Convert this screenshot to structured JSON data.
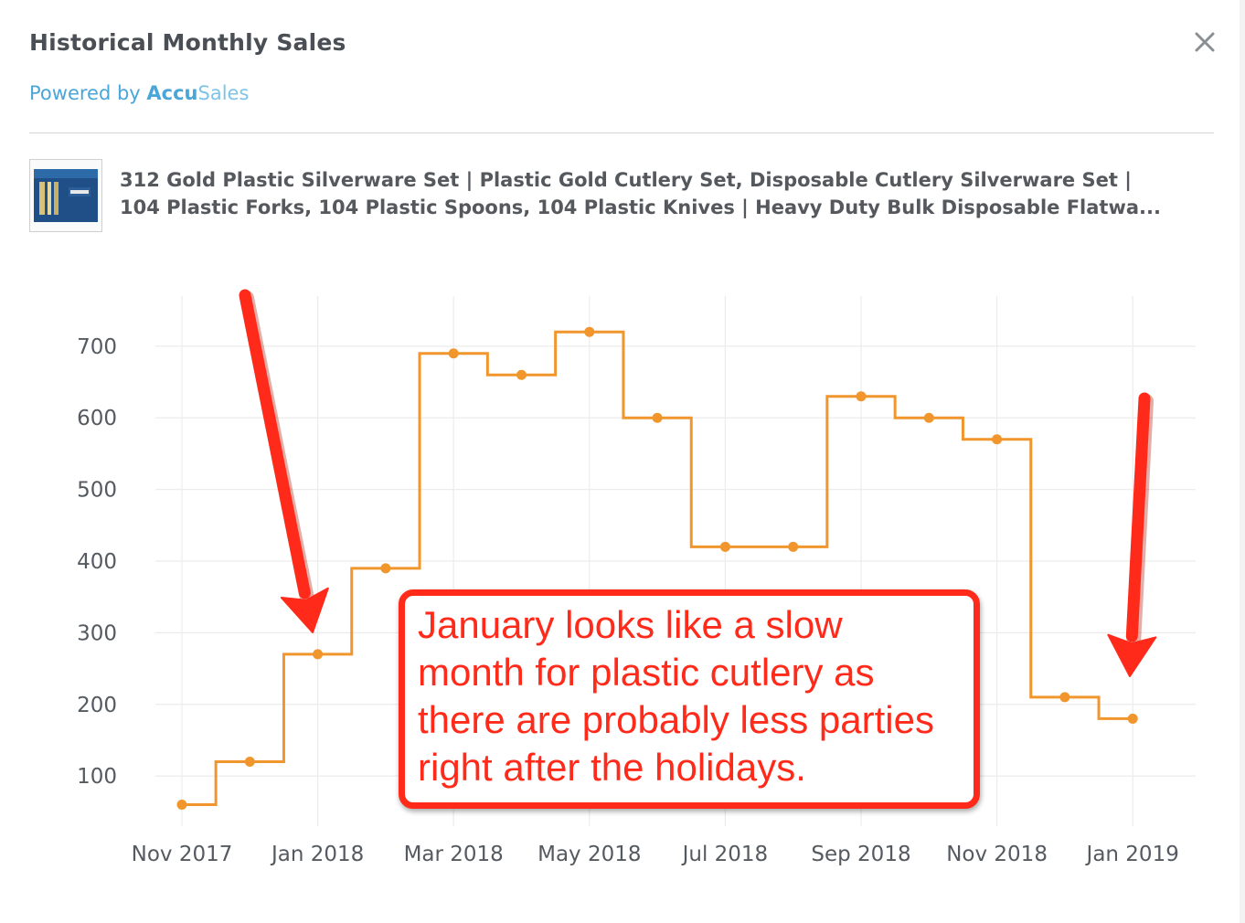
{
  "modal": {
    "title": "Historical Monthly Sales",
    "powered_prefix": "Powered by ",
    "brand_a": "Accu",
    "brand_b": "Sales",
    "close_icon": "close-icon"
  },
  "product": {
    "line1": "312 Gold Plastic Silverware Set | Plastic Gold Cutlery Set, Disposable Cutlery Silverware Set |",
    "line2": "104 Plastic Forks, 104 Plastic Spoons, 104 Plastic Knives | Heavy Duty Bulk Disposable Flatwa...",
    "thumbnail_icon": "product-thumbnail"
  },
  "annotation": {
    "line1": "January looks like a slow",
    "line2": "month for plastic cutlery as",
    "line3": "there are probably less parties",
    "line4": "right after the holidays."
  },
  "colors": {
    "series": "#f0962d",
    "annotation": "#ff2a1a",
    "brand": "#4aa6d9"
  },
  "chart_data": {
    "type": "line",
    "style": "step",
    "x": [
      "2017-11",
      "2017-12",
      "2018-01",
      "2018-02",
      "2018-03",
      "2018-04",
      "2018-05",
      "2018-06",
      "2018-07",
      "2018-08",
      "2018-09",
      "2018-10",
      "2018-11",
      "2018-12",
      "2019-01"
    ],
    "y": [
      60,
      120,
      270,
      390,
      690,
      660,
      720,
      600,
      420,
      420,
      630,
      600,
      570,
      210,
      180
    ],
    "xtick_labels": [
      "Nov 2017",
      "Jan 2018",
      "Mar 2018",
      "May 2018",
      "Jul 2018",
      "Sep 2018",
      "Nov 2018",
      "Jan 2019"
    ],
    "xtick_indices": [
      0,
      2,
      4,
      6,
      8,
      10,
      12,
      14
    ],
    "yticks": [
      100,
      200,
      300,
      400,
      500,
      600,
      700
    ],
    "ylim": [
      30,
      770
    ],
    "grid": true,
    "title": "",
    "xlabel": "",
    "ylabel": ""
  }
}
